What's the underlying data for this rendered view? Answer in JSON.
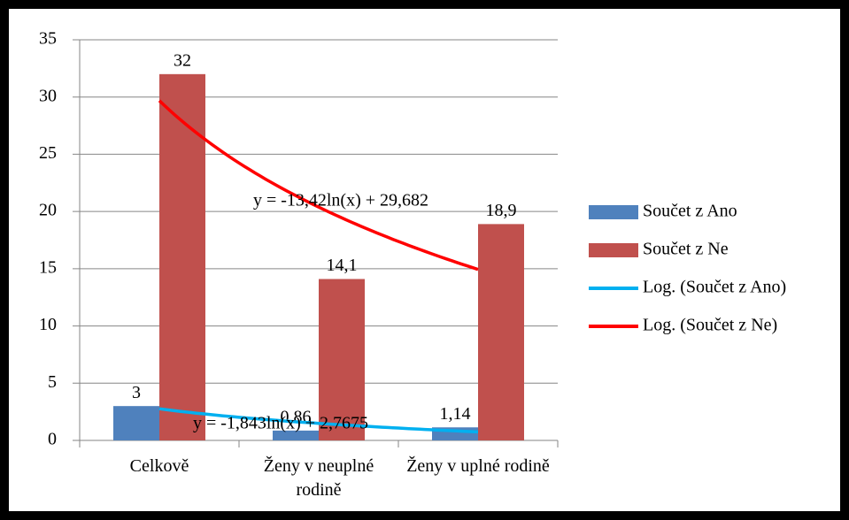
{
  "chart_data": {
    "type": "bar",
    "categories": [
      "Celkově",
      "Ženy v neuplné rodině",
      "Ženy v uplné rodině"
    ],
    "series": [
      {
        "name": "Součet z Ano",
        "color": "#4f81bd",
        "values": [
          3,
          0.86,
          1.14
        ],
        "value_labels": [
          "3",
          "0,86",
          "1,14"
        ],
        "trendline": {
          "name": "Log. (Součet z Ano)",
          "color": "#00b0f0",
          "equation": "y = -1,843ln(x) + 2,7675",
          "a": -1.843,
          "b": 2.7675
        }
      },
      {
        "name": "Součet z Ne",
        "color": "#c0504d",
        "values": [
          32,
          14.1,
          18.9
        ],
        "value_labels": [
          "32",
          "14,1",
          "18,9"
        ],
        "trendline": {
          "name": "Log. (Součet z Ne)",
          "color": "#ff0000",
          "equation": "y = -13,42ln(x) + 29,682",
          "a": -13.42,
          "b": 29.682
        }
      }
    ],
    "ylim": [
      0,
      35
    ],
    "yticks": [
      0,
      5,
      10,
      15,
      20,
      25,
      30,
      35
    ],
    "grid": true,
    "legend": "right"
  }
}
